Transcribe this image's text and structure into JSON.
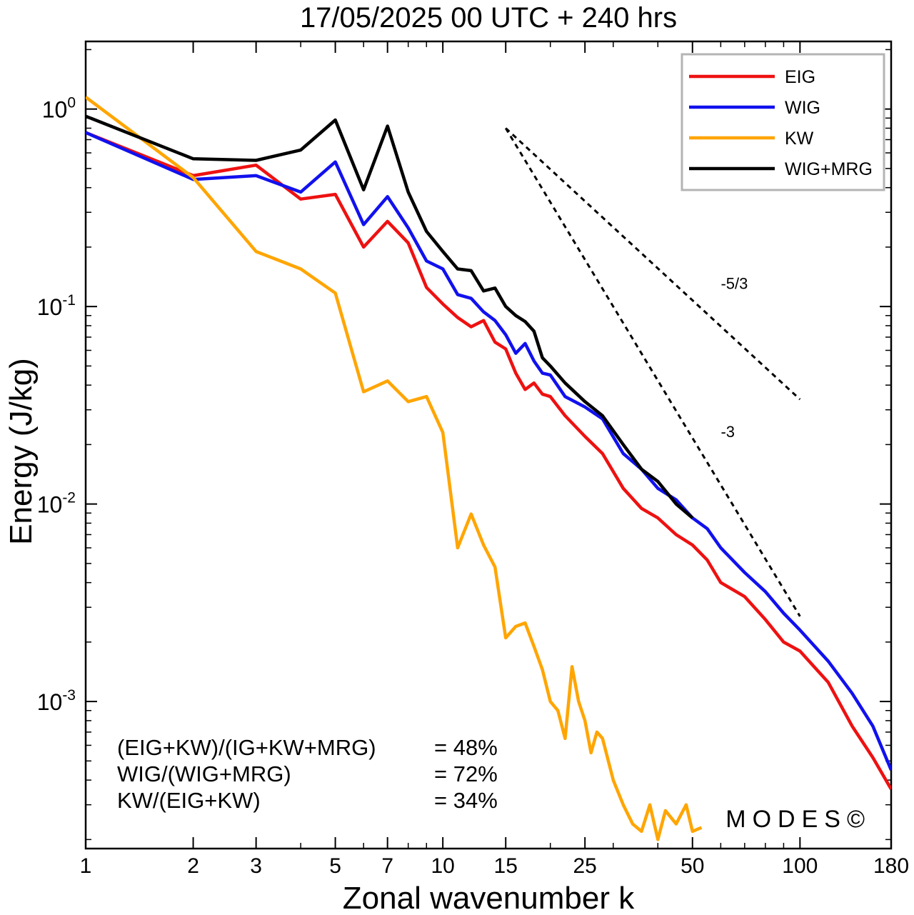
{
  "chart_data": {
    "type": "line",
    "title": "17/05/2025  00 UTC  + 240 hrs",
    "xlabel": "Zonal wavenumber k",
    "ylabel": "Energy (J/kg)",
    "xscale": "log",
    "yscale": "log",
    "xlim": [
      1,
      180
    ],
    "ylim": [
      0.00018,
      2.2
    ],
    "xticks": [
      1,
      2,
      3,
      5,
      7,
      10,
      15,
      25,
      50,
      100,
      180
    ],
    "xtick_labels": [
      "1",
      "2",
      "3",
      "5",
      "7",
      "10",
      "15",
      "25",
      "50",
      "100",
      "180"
    ],
    "yticks": [
      {
        "value": 1,
        "base": "10",
        "exp": "0"
      },
      {
        "value": 0.1,
        "base": "10",
        "exp": "-1"
      },
      {
        "value": 0.01,
        "base": "10",
        "exp": "-2"
      },
      {
        "value": 0.001,
        "base": "10",
        "exp": "-3"
      }
    ],
    "legend_position": "top-right",
    "series": [
      {
        "name": "EIG",
        "color": "#ee1111",
        "x": [
          1,
          2,
          3,
          4,
          5,
          6,
          7,
          8,
          9,
          10,
          11,
          12,
          13,
          14,
          15,
          16,
          17,
          18,
          19,
          20,
          22,
          25,
          28,
          32,
          36,
          40,
          45,
          50,
          55,
          60,
          70,
          80,
          90,
          100,
          120,
          140,
          160,
          180
        ],
        "y": [
          0.76,
          0.46,
          0.52,
          0.35,
          0.37,
          0.2,
          0.27,
          0.21,
          0.125,
          0.103,
          0.088,
          0.079,
          0.085,
          0.066,
          0.061,
          0.046,
          0.038,
          0.041,
          0.036,
          0.035,
          0.028,
          0.022,
          0.018,
          0.012,
          0.0095,
          0.0085,
          0.007,
          0.0062,
          0.0052,
          0.004,
          0.0034,
          0.0026,
          0.002,
          0.0018,
          0.00125,
          0.00075,
          0.00052,
          0.00036
        ]
      },
      {
        "name": "WIG",
        "color": "#1111ee",
        "x": [
          1,
          2,
          3,
          4,
          5,
          6,
          7,
          8,
          9,
          10,
          11,
          12,
          13,
          14,
          15,
          16,
          17,
          18,
          19,
          20,
          22,
          25,
          28,
          32,
          36,
          40,
          45,
          50,
          55,
          60,
          70,
          80,
          90,
          100,
          120,
          140,
          160,
          180
        ],
        "y": [
          0.76,
          0.44,
          0.46,
          0.38,
          0.54,
          0.26,
          0.36,
          0.25,
          0.17,
          0.155,
          0.115,
          0.11,
          0.094,
          0.085,
          0.072,
          0.058,
          0.065,
          0.053,
          0.046,
          0.045,
          0.035,
          0.031,
          0.027,
          0.018,
          0.015,
          0.012,
          0.0105,
          0.0085,
          0.0075,
          0.006,
          0.0045,
          0.0036,
          0.0028,
          0.0023,
          0.0016,
          0.0011,
          0.00075,
          0.00045
        ]
      },
      {
        "name": "KW",
        "color": "#ffa500",
        "x": [
          1,
          2,
          3,
          4,
          5,
          6,
          7,
          8,
          9,
          10,
          11,
          12,
          13,
          14,
          15,
          16,
          17,
          18,
          19,
          20,
          21,
          22,
          23,
          24,
          25,
          26,
          27,
          28,
          30,
          32,
          34,
          36,
          38,
          40,
          42,
          45,
          48,
          50,
          53
        ],
        "y": [
          1.15,
          0.45,
          0.19,
          0.155,
          0.117,
          0.037,
          0.042,
          0.033,
          0.035,
          0.023,
          0.006,
          0.0089,
          0.0062,
          0.0048,
          0.0021,
          0.0024,
          0.0025,
          0.0019,
          0.00145,
          0.001,
          0.0009,
          0.00065,
          0.0015,
          0.001,
          0.0008,
          0.00055,
          0.0007,
          0.00065,
          0.0004,
          0.0003,
          0.00024,
          0.00022,
          0.0003,
          0.0002,
          0.00028,
          0.00024,
          0.0003,
          0.00022,
          0.00023
        ]
      },
      {
        "name": "WIG+MRG",
        "color": "#000000",
        "x": [
          1,
          2,
          3,
          4,
          5,
          6,
          7,
          8,
          9,
          10,
          11,
          12,
          13,
          14,
          15,
          16,
          17,
          18,
          19,
          20,
          22,
          25,
          28,
          32,
          36,
          40,
          45,
          50
        ],
        "y": [
          0.92,
          0.56,
          0.55,
          0.62,
          0.88,
          0.39,
          0.82,
          0.38,
          0.24,
          0.19,
          0.155,
          0.152,
          0.12,
          0.124,
          0.1,
          0.09,
          0.084,
          0.075,
          0.055,
          0.05,
          0.041,
          0.033,
          0.028,
          0.02,
          0.015,
          0.013,
          0.01,
          0.0085
        ]
      }
    ],
    "reference_lines": [
      {
        "label": "-5/3",
        "slope": -1.6667,
        "x": [
          15,
          100
        ],
        "y_start": 0.8
      },
      {
        "label": "-3",
        "slope": -3,
        "x": [
          15,
          100
        ],
        "y_start": 0.8
      }
    ],
    "annotations": [
      {
        "text": "(EIG+KW)/(IG+KW+MRG)",
        "value": "= 48%"
      },
      {
        "text": "WIG/(WIG+MRG)",
        "value": "= 72%"
      },
      {
        "text": "KW/(EIG+KW)",
        "value": "= 34%"
      }
    ],
    "watermark": "MODES©"
  }
}
